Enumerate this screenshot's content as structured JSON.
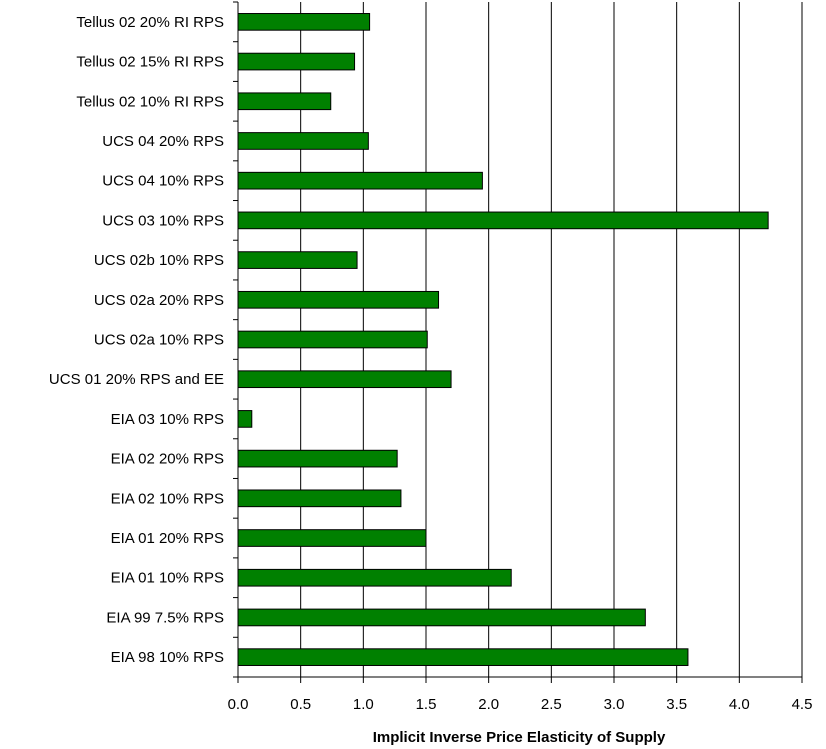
{
  "chart_data": {
    "type": "bar",
    "orientation": "horizontal",
    "categories": [
      "Tellus 02 20% RI RPS",
      "Tellus 02 15% RI RPS",
      "Tellus 02 10% RI RPS",
      "UCS 04 20% RPS",
      "UCS 04 10% RPS",
      "UCS 03 10% RPS",
      "UCS 02b 10% RPS",
      "UCS 02a 20% RPS",
      "UCS 02a 10% RPS",
      "UCS 01 20% RPS and EE",
      "EIA 03 10% RPS",
      "EIA 02 20% RPS",
      "EIA 02 10% RPS",
      "EIA 01 20% RPS",
      "EIA 01 10% RPS",
      "EIA 99 7.5% RPS",
      "EIA 98 10% RPS"
    ],
    "values": [
      1.05,
      0.93,
      0.74,
      1.04,
      1.95,
      4.23,
      0.95,
      1.6,
      1.51,
      1.7,
      0.11,
      1.27,
      1.3,
      1.5,
      2.18,
      3.25,
      3.59
    ],
    "xlabel": "Implicit Inverse Price Elasticity of Supply",
    "ylabel": "",
    "title": "",
    "xlim": [
      0,
      4.5
    ],
    "x_ticks": [
      "0.0",
      "0.5",
      "1.0",
      "1.5",
      "2.0",
      "2.5",
      "3.0",
      "3.5",
      "4.0",
      "4.5"
    ],
    "grid": "vertical",
    "legend": "none",
    "bar_color": "#008000",
    "bar_edge_color": "#000000"
  }
}
